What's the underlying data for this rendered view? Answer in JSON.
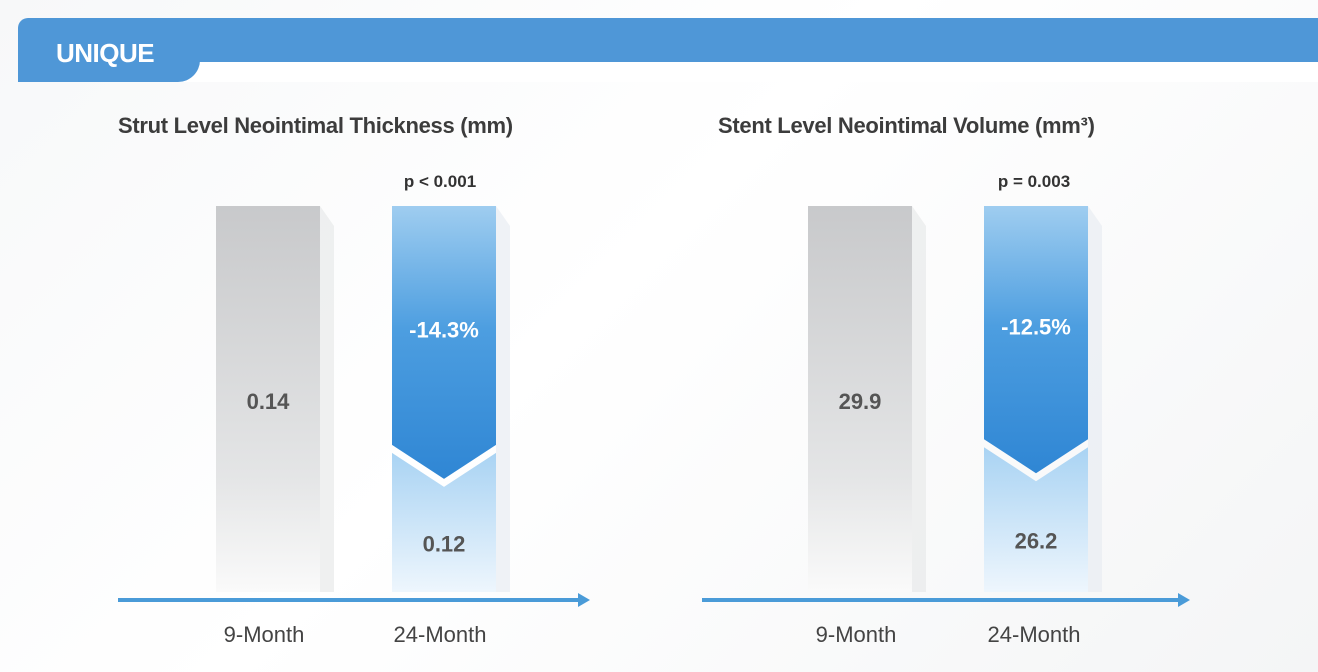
{
  "header": {
    "title": "UNIQUE"
  },
  "chart_data": [
    {
      "type": "bar",
      "title": "Strut Level Neointimal Thickness (mm)",
      "categories": [
        "9-Month",
        "24-Month"
      ],
      "values": [
        0.14,
        0.12
      ],
      "value_labels": [
        "0.14",
        "0.12"
      ],
      "change_label": "-14.3%",
      "p_value": "p < 0.001",
      "colors": {
        "baseline": "#c8c9cb",
        "followup_dark": "#2f86d4",
        "followup_light": "#cfe6f8",
        "axis": "#4a9bd8"
      }
    },
    {
      "type": "bar",
      "title": "Stent Level Neointimal Volume (mm³)",
      "categories": [
        "9-Month",
        "24-Month"
      ],
      "values": [
        29.9,
        26.2
      ],
      "value_labels": [
        "29.9",
        "26.2"
      ],
      "change_label": "-12.5%",
      "p_value": "p = 0.003",
      "colors": {
        "baseline": "#c8c9cb",
        "followup_dark": "#2f86d4",
        "followup_light": "#cfe6f8",
        "axis": "#4a9bd8"
      }
    }
  ]
}
